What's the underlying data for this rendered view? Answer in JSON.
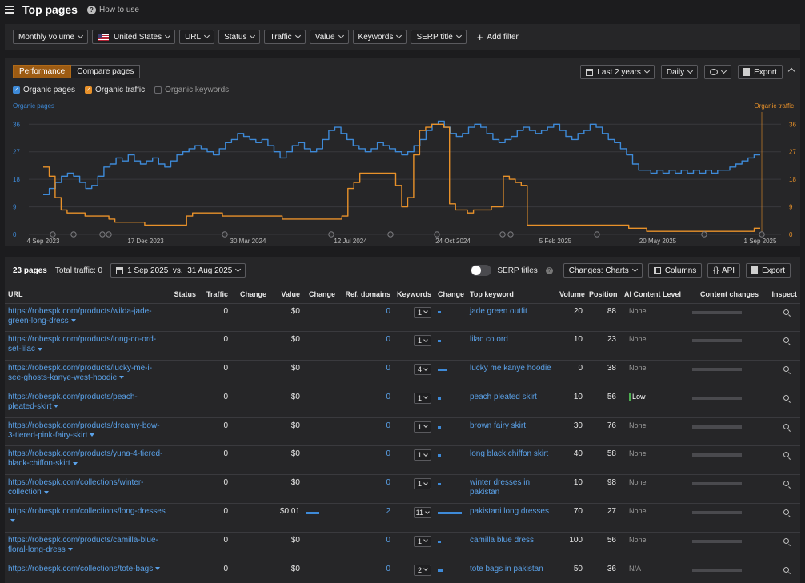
{
  "header": {
    "title": "Top pages",
    "help": "How to use"
  },
  "filters": {
    "items": [
      "Monthly volume",
      "United States",
      "URL",
      "Status",
      "Traffic",
      "Value",
      "Keywords",
      "SERP title"
    ],
    "add": "Add filter"
  },
  "chart_panel": {
    "tabs": [
      "Performance",
      "Compare pages"
    ],
    "range": "Last 2 years",
    "interval": "Daily",
    "export": "Export",
    "checks": [
      "Organic pages",
      "Organic traffic",
      "Organic keywords"
    ]
  },
  "chart_data": {
    "type": "line",
    "left_axis_label": "Organic pages",
    "right_axis_label": "Organic traffic",
    "y_ticks": [
      0,
      9,
      18,
      27,
      36
    ],
    "ylim": [
      0,
      40
    ],
    "x_ticks": [
      "4 Sep 2023",
      "17 Dec 2023",
      "30 Mar 2024",
      "12 Jul 2024",
      "24 Oct 2024",
      "5 Feb 2025",
      "20 May 2025",
      "1 Sep 2025"
    ],
    "series": [
      {
        "name": "Organic pages",
        "color": "#3e8ad8",
        "values": [
          13,
          15,
          17,
          19,
          20,
          19,
          17,
          15,
          16,
          19,
          22,
          23,
          25,
          24,
          26,
          24,
          23,
          24,
          25,
          23,
          22,
          24,
          26,
          27,
          28,
          29,
          28,
          27,
          26,
          28,
          30,
          31,
          33,
          32,
          31,
          30,
          31,
          29,
          27,
          25,
          27,
          29,
          30,
          28,
          27,
          28,
          31,
          34,
          35,
          33,
          31,
          29,
          28,
          27,
          28,
          30,
          29,
          28,
          27,
          26,
          27,
          29,
          31,
          34,
          36,
          37,
          35,
          33,
          32,
          33,
          35,
          36,
          35,
          33,
          31,
          30,
          31,
          32,
          34,
          35,
          34,
          33,
          34,
          35,
          36,
          34,
          32,
          31,
          33,
          34,
          36,
          35,
          33,
          31,
          30,
          28,
          26,
          23,
          21,
          21,
          20,
          21,
          20,
          21,
          20,
          21,
          20,
          21,
          20,
          21,
          20,
          21,
          21,
          22,
          23,
          24,
          25,
          26,
          26
        ]
      },
      {
        "name": "Organic traffic",
        "color": "#e8912a",
        "values": [
          22,
          19,
          12,
          8,
          7,
          7,
          7,
          6,
          6,
          6,
          6,
          5,
          4,
          4,
          4,
          4,
          4,
          3,
          3,
          3,
          3,
          3,
          3,
          3,
          6,
          7,
          7,
          7,
          7,
          7,
          6,
          6,
          6,
          6,
          6,
          6,
          6,
          6,
          6,
          6,
          5,
          5,
          5,
          5,
          5,
          5,
          5,
          5,
          5,
          5,
          6,
          15,
          17,
          20,
          20,
          20,
          20,
          20,
          20,
          16,
          9,
          12,
          26,
          34,
          35,
          36,
          36,
          35,
          10,
          8,
          8,
          7,
          8,
          8,
          8,
          9,
          9,
          19,
          18,
          17,
          16,
          3,
          3,
          3,
          3,
          3,
          3,
          3,
          3,
          3,
          3,
          3,
          3,
          3,
          3,
          3,
          3,
          3,
          2,
          2,
          2,
          1,
          1,
          1,
          1,
          1,
          1,
          1,
          1,
          1,
          1,
          1,
          1,
          1,
          1,
          1,
          1,
          1,
          1,
          2,
          2
        ]
      }
    ]
  },
  "table_bar": {
    "count": "23 pages",
    "total": "Total traffic: 0",
    "dates": "1 Sep 2025",
    "vs": "vs.",
    "compare": "31 Aug 2025",
    "serp": "SERP titles",
    "changes": "Changes: Charts",
    "columns": "Columns",
    "api": "API",
    "export": "Export"
  },
  "columns": [
    "URL",
    "Status",
    "Traffic",
    "Change",
    "Value",
    "Change",
    "Ref. domains",
    "Keywords",
    "Change",
    "Top keyword",
    "Volume",
    "Position",
    "AI Content Level",
    "Content changes",
    "Inspect"
  ],
  "rows": [
    {
      "url": "https://robespk.com/products/wilda-jade-green-long-dress",
      "traffic": "0",
      "value": "$0",
      "value_bar": 0,
      "ref": "0",
      "kw": "1",
      "kw_bar": 4,
      "top": "jade green outfit",
      "vol": "20",
      "pos": "88",
      "ai": "None"
    },
    {
      "url": "https://robespk.com/products/long-co-ord-set-lilac",
      "traffic": "0",
      "value": "$0",
      "value_bar": 0,
      "ref": "0",
      "kw": "1",
      "kw_bar": 4,
      "top": "lilac co ord",
      "vol": "10",
      "pos": "23",
      "ai": "None"
    },
    {
      "url": "https://robespk.com/products/lucky-me-i-see-ghosts-kanye-west-hoodie",
      "traffic": "0",
      "value": "$0",
      "value_bar": 0,
      "ref": "0",
      "kw": "4",
      "kw_bar": 12,
      "top": "lucky me kanye hoodie",
      "vol": "0",
      "pos": "38",
      "ai": "None"
    },
    {
      "url": "https://robespk.com/products/peach-pleated-skirt",
      "traffic": "0",
      "value": "$0",
      "value_bar": 0,
      "ref": "0",
      "kw": "1",
      "kw_bar": 4,
      "top": "peach pleated skirt",
      "vol": "10",
      "pos": "56",
      "ai": "Low"
    },
    {
      "url": "https://robespk.com/products/dreamy-bow-3-tiered-pink-fairy-skirt",
      "traffic": "0",
      "value": "$0",
      "value_bar": 0,
      "ref": "0",
      "kw": "1",
      "kw_bar": 4,
      "top": "brown fairy skirt",
      "vol": "30",
      "pos": "76",
      "ai": "None"
    },
    {
      "url": "https://robespk.com/products/yuna-4-tiered-black-chiffon-skirt",
      "traffic": "0",
      "value": "$0",
      "value_bar": 0,
      "ref": "0",
      "kw": "1",
      "kw_bar": 4,
      "top": "long black chiffon skirt",
      "vol": "40",
      "pos": "58",
      "ai": "None"
    },
    {
      "url": "https://robespk.com/collections/winter-collection",
      "traffic": "0",
      "value": "$0",
      "value_bar": 0,
      "ref": "0",
      "kw": "1",
      "kw_bar": 4,
      "top": "winter dresses in pakistan",
      "vol": "10",
      "pos": "98",
      "ai": "None"
    },
    {
      "url": "https://robespk.com/collections/long-dresses",
      "traffic": "0",
      "value": "$0.01",
      "value_bar": 16,
      "ref": "2",
      "kw": "11",
      "kw_bar": 30,
      "top": "pakistani long dresses",
      "vol": "70",
      "pos": "27",
      "ai": "None"
    },
    {
      "url": "https://robespk.com/products/camilla-blue-floral-long-dress",
      "traffic": "0",
      "value": "$0",
      "value_bar": 0,
      "ref": "0",
      "kw": "1",
      "kw_bar": 4,
      "top": "camilla blue dress",
      "vol": "100",
      "pos": "56",
      "ai": "None"
    },
    {
      "url": "https://robespk.com/collections/tote-bags",
      "traffic": "0",
      "value": "$0",
      "value_bar": 0,
      "ref": "0",
      "kw": "2",
      "kw_bar": 6,
      "top": "tote bags in pakistan",
      "vol": "50",
      "pos": "36",
      "ai": "N/A"
    }
  ]
}
